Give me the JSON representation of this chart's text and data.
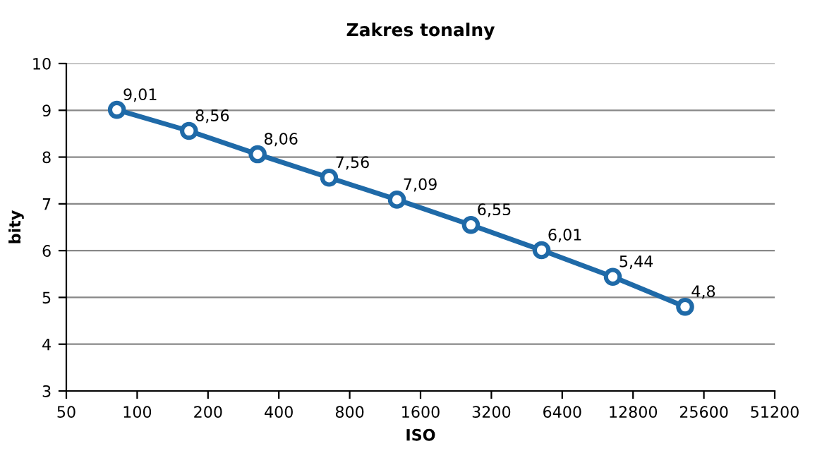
{
  "chart_data": {
    "type": "line",
    "title": "Zakres tonalny",
    "xlabel": "ISO",
    "ylabel": "bity",
    "log": "x",
    "xlim": [
      50,
      51200
    ],
    "xticks": [
      50,
      100,
      200,
      400,
      800,
      1600,
      3200,
      6400,
      12800,
      25600,
      51200
    ],
    "ylim": [
      3,
      10
    ],
    "yticks": [
      3,
      4,
      5,
      6,
      7,
      8,
      9,
      10
    ],
    "grid": "y",
    "marker": "circle",
    "line_style": "solid",
    "series": [
      {
        "color": "#1f6aa8",
        "x": [
          82,
          166,
          325,
          654,
          1270,
          2620,
          5230,
          10500,
          21300
        ],
        "values": [
          9.01,
          8.56,
          8.06,
          7.56,
          7.09,
          6.55,
          6.01,
          5.44,
          4.8
        ],
        "value_labels": [
          "9,01",
          "8,56",
          "8,06",
          "7,56",
          "7,09",
          "6,55",
          "6,01",
          "5,44",
          "4,8"
        ]
      }
    ]
  }
}
